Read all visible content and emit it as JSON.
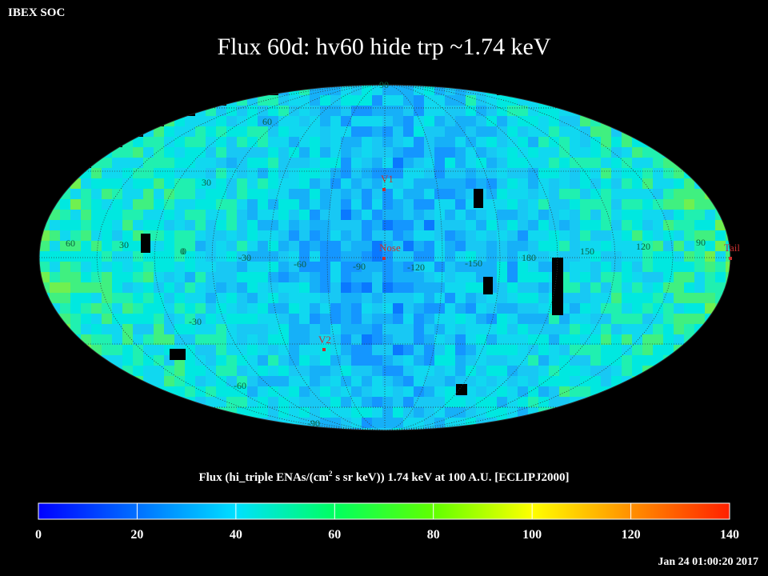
{
  "header": {
    "org": "IBEX SOC"
  },
  "title": "Flux   60d: hv60 hide trp ~1.74 keV",
  "map": {
    "projection": "Mollweide (ecliptic)",
    "grid_lat_labels": [
      "90",
      "60",
      "30",
      "0",
      "-30",
      "-60",
      "-90"
    ],
    "grid_lon_labels": [
      "60",
      "30",
      "0",
      "-30",
      "-60",
      "-90",
      "-120",
      "-150",
      "180",
      "150",
      "120",
      "90"
    ],
    "markers": [
      {
        "label": "V1",
        "color": "#c83030"
      },
      {
        "label": "Nose",
        "color": "#c83030"
      },
      {
        "label": "V2",
        "color": "#c83030"
      },
      {
        "label": "Tail",
        "color": "#c83030"
      }
    ]
  },
  "colorbar": {
    "title_pre": "Flux (hi_triple ENAs/(cm",
    "title_sup": "2",
    "title_post": " s sr keV))  1.74 keV at 100 A.U. [ECLIPJ2000]",
    "ticks": [
      "0",
      "20",
      "40",
      "60",
      "80",
      "100",
      "120",
      "140"
    ],
    "min": 0,
    "max": 140,
    "colors": [
      "#0000ff",
      "#0070ff",
      "#00e0ff",
      "#00ff60",
      "#60ff00",
      "#ffff00",
      "#ff9000",
      "#ff2000"
    ]
  },
  "timestamp": "Jan 24 01:00:20 2017"
}
